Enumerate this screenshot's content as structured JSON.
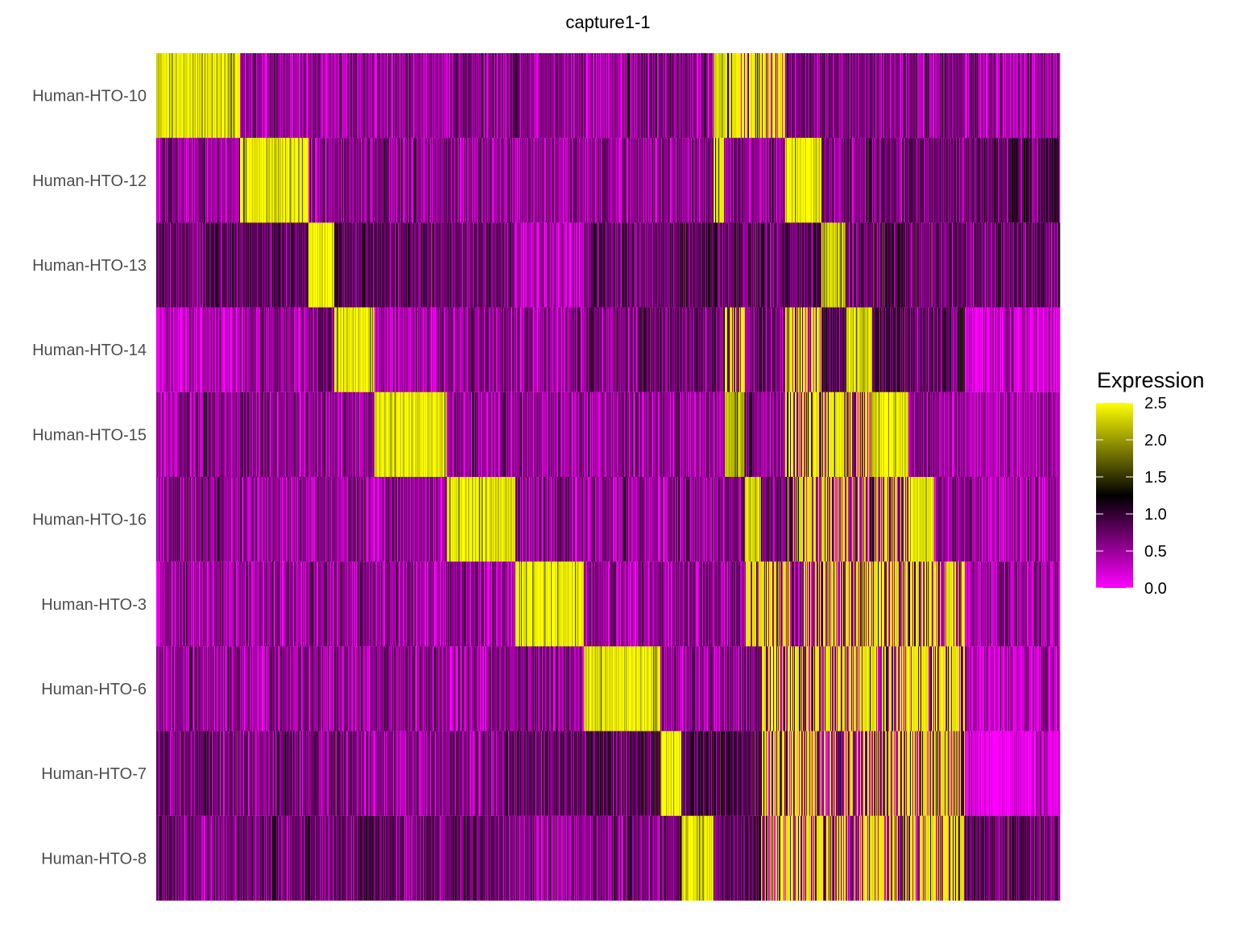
{
  "chart_data": {
    "type": "heatmap",
    "title": "capture1-1",
    "rows": [
      "Human-HTO-10",
      "Human-HTO-12",
      "Human-HTO-13",
      "Human-HTO-14",
      "Human-HTO-15",
      "Human-HTO-16",
      "Human-HTO-3",
      "Human-HTO-6",
      "Human-HTO-7",
      "Human-HTO-8"
    ],
    "legend": {
      "title": "Expression",
      "position": "right",
      "range": [
        0,
        2.5
      ],
      "ticks": [
        "0.0",
        "0.5",
        "1.0",
        "1.5",
        "2.0",
        "2.5"
      ],
      "colors": {
        "low": "#FF00FF",
        "mid": "#000000",
        "high": "#FFFF00"
      },
      "mid_value": 1.25
    },
    "column_groups_note_values": "estimated cell counts and mean expression per row (row order as in rows)",
    "column_groups": [
      {
        "n_cells": 104,
        "means": [
          2.4,
          0.5,
          0.8,
          0.3,
          0.5,
          0.5,
          0.5,
          0.5,
          0.7,
          0.6
        ]
      },
      {
        "n_cells": 85,
        "means": [
          0.5,
          2.4,
          0.8,
          0.5,
          0.5,
          0.5,
          0.5,
          0.5,
          0.6,
          0.7
        ]
      },
      {
        "n_cells": 32,
        "means": [
          0.5,
          0.5,
          2.45,
          0.6,
          0.5,
          0.5,
          0.5,
          0.5,
          0.6,
          0.8
        ]
      },
      {
        "n_cells": 50,
        "means": [
          0.5,
          0.5,
          0.8,
          2.45,
          0.5,
          0.5,
          0.5,
          0.5,
          0.6,
          0.8
        ]
      },
      {
        "n_cells": 90,
        "means": [
          0.5,
          0.5,
          0.8,
          0.4,
          2.4,
          0.5,
          0.5,
          0.5,
          0.5,
          0.7
        ]
      },
      {
        "n_cells": 85,
        "means": [
          0.5,
          0.5,
          0.7,
          0.6,
          0.5,
          2.4,
          0.5,
          0.5,
          0.6,
          0.7
        ]
      },
      {
        "n_cells": 85,
        "means": [
          0.5,
          0.5,
          0.3,
          0.5,
          0.5,
          0.5,
          2.45,
          0.6,
          0.7,
          0.5
        ]
      },
      {
        "n_cells": 95,
        "means": [
          0.5,
          0.5,
          0.7,
          0.7,
          0.5,
          0.5,
          0.5,
          2.4,
          0.8,
          0.6
        ]
      },
      {
        "n_cells": 26,
        "means": [
          0.5,
          0.5,
          0.8,
          0.7,
          0.5,
          0.5,
          0.5,
          0.5,
          2.5,
          0.7
        ]
      },
      {
        "n_cells": 40,
        "means": [
          0.5,
          0.5,
          0.8,
          0.7,
          0.5,
          0.5,
          0.5,
          0.5,
          0.9,
          2.4
        ]
      },
      {
        "n_cells": 14,
        "means": [
          2.3,
          1.8,
          0.8,
          0.7,
          0.5,
          0.5,
          0.5,
          0.5,
          0.8,
          0.8
        ]
      },
      {
        "n_cells": 25,
        "means": [
          2.1,
          0.6,
          0.8,
          1.6,
          2.2,
          0.6,
          0.6,
          0.6,
          0.9,
          0.8
        ]
      },
      {
        "n_cells": 20,
        "means": [
          2.1,
          0.6,
          0.8,
          0.7,
          0.6,
          2.3,
          1.8,
          0.6,
          0.9,
          0.8
        ]
      },
      {
        "n_cells": 30,
        "means": [
          2.1,
          0.6,
          0.8,
          0.7,
          0.6,
          0.7,
          1.7,
          1.6,
          1.5,
          1.3
        ]
      },
      {
        "n_cells": 45,
        "means": [
          0.6,
          2.4,
          0.8,
          1.5,
          1.6,
          1.5,
          1.3,
          1.6,
          1.5,
          1.6
        ]
      },
      {
        "n_cells": 30,
        "means": [
          0.6,
          0.6,
          2.3,
          0.8,
          1.7,
          1.6,
          1.5,
          1.6,
          1.4,
          1.4
        ]
      },
      {
        "n_cells": 33,
        "means": [
          0.6,
          0.6,
          0.8,
          2.3,
          1.5,
          1.3,
          1.7,
          1.7,
          1.5,
          1.3
        ]
      },
      {
        "n_cells": 45,
        "means": [
          0.6,
          0.6,
          0.8,
          0.8,
          2.4,
          1.6,
          1.6,
          1.8,
          1.5,
          1.5
        ]
      },
      {
        "n_cells": 32,
        "means": [
          0.6,
          0.6,
          0.8,
          0.8,
          0.6,
          2.4,
          1.6,
          1.7,
          1.6,
          1.6
        ]
      },
      {
        "n_cells": 38,
        "means": [
          0.6,
          0.7,
          0.8,
          0.8,
          0.6,
          0.6,
          2.0,
          1.8,
          1.8,
          1.7
        ]
      },
      {
        "n_cells": 118,
        "means": [
          0.4,
          0.8,
          0.7,
          0.2,
          0.4,
          0.4,
          0.4,
          0.3,
          0.15,
          0.8
        ]
      }
    ]
  }
}
